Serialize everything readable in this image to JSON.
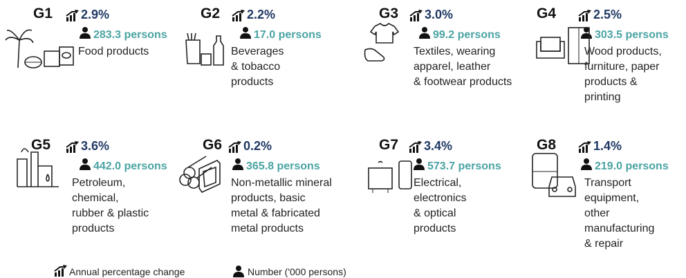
{
  "groups": [
    {
      "code": "G1",
      "change": "2.9%",
      "persons": "283.3 persons",
      "description": [
        "Food products"
      ]
    },
    {
      "code": "G2",
      "change": "2.2%",
      "persons": "17.0 persons",
      "description": [
        "Beverages",
        "& tobacco",
        "products"
      ]
    },
    {
      "code": "G3",
      "change": "3.0%",
      "persons": "99.2 persons",
      "description": [
        "Textiles, wearing",
        "apparel, leather",
        "& footwear products"
      ]
    },
    {
      "code": "G4",
      "change": "2.5%",
      "persons": "303.5 persons",
      "description": [
        "Wood products,",
        "furniture, paper",
        "products &",
        "printing"
      ]
    },
    {
      "code": "G5",
      "change": "3.6%",
      "persons": "442.0 persons",
      "description": [
        "Petroleum,",
        "chemical,",
        "rubber & plastic",
        "products"
      ]
    },
    {
      "code": "G6",
      "change": "0.2%",
      "persons": "365.8 persons",
      "description": [
        "Non-metallic mineral",
        "products, basic",
        "metal & fabricated",
        "metal products"
      ]
    },
    {
      "code": "G7",
      "change": "3.4%",
      "persons": "573.7 persons",
      "description": [
        "Electrical,",
        "electronics",
        "& optical",
        "products"
      ]
    },
    {
      "code": "G8",
      "change": "1.4%",
      "persons": "219.0 persons",
      "description": [
        "Transport",
        "equipment,",
        "other",
        "manufacturing",
        "& repair"
      ]
    }
  ],
  "legend": {
    "change": "Annual percentage change",
    "persons": "Number ('000 persons)"
  }
}
